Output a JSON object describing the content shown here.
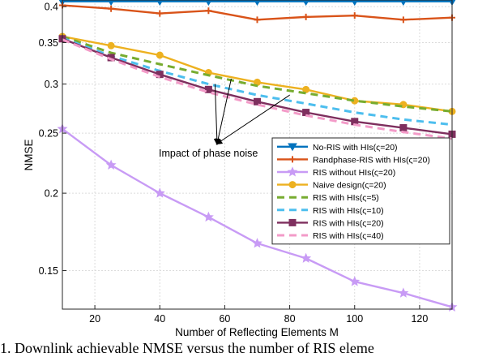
{
  "chart_data": {
    "type": "line",
    "xlabel": "Number of Reflecting Elements M",
    "ylabel": "NMSE",
    "xlim": [
      10,
      130
    ],
    "ylim": [
      0.13,
      0.41
    ],
    "yscale": "log",
    "grid": true,
    "legend_position": "center-right",
    "xticks": [
      {
        "value": 20,
        "label": "20"
      },
      {
        "value": 40,
        "label": "40"
      },
      {
        "value": 60,
        "label": "60"
      },
      {
        "value": 80,
        "label": "80"
      },
      {
        "value": 100,
        "label": "100"
      },
      {
        "value": 120,
        "label": "120"
      }
    ],
    "yticks": [
      {
        "value": 0.15,
        "label": "0.15"
      },
      {
        "value": 0.2,
        "label": "0.2"
      },
      {
        "value": 0.25,
        "label": "0.25"
      },
      {
        "value": 0.3,
        "label": "0.3"
      },
      {
        "value": 0.35,
        "label": "0.35"
      },
      {
        "value": 0.4,
        "label": "0.4"
      }
    ],
    "series": [
      {
        "name": "No-RIS with HIs(ς=20)",
        "color": "#0072BD",
        "dash": "solid",
        "marker": "triangle-down",
        "x": [
          10,
          25,
          40,
          55,
          70,
          85,
          100,
          115,
          130
        ],
        "y": [
          0.408,
          0.408,
          0.408,
          0.408,
          0.408,
          0.408,
          0.408,
          0.408,
          0.408
        ]
      },
      {
        "name": "Randphase-RIS with HIs(ς=20)",
        "color": "#D95319",
        "dash": "solid",
        "marker": "plus",
        "x": [
          10,
          25,
          40,
          55,
          70,
          85,
          100,
          115,
          130
        ],
        "y": [
          0.402,
          0.397,
          0.39,
          0.394,
          0.381,
          0.385,
          0.387,
          0.381,
          0.384
        ]
      },
      {
        "name": "RIS without HIs(ς=20)",
        "color": "#C89BF5",
        "dash": "solid",
        "marker": "star",
        "x": [
          10,
          25,
          40,
          55,
          70,
          85,
          100,
          115,
          130
        ],
        "y": [
          0.254,
          0.222,
          0.2,
          0.183,
          0.166,
          0.157,
          0.144,
          0.138,
          0.131
        ]
      },
      {
        "name": "Naive design(ς=20)",
        "color": "#EDB120",
        "dash": "solid",
        "marker": "circle",
        "x": [
          10,
          25,
          40,
          55,
          70,
          85,
          100,
          115,
          130
        ],
        "y": [
          0.358,
          0.346,
          0.334,
          0.313,
          0.302,
          0.294,
          0.282,
          0.278,
          0.271
        ]
      },
      {
        "name": "RIS with HIs(ς=5)",
        "color": "#77AC30",
        "dash": "dashed",
        "marker": "none",
        "x": [
          10,
          25,
          40,
          55,
          70,
          85,
          100,
          115,
          130
        ],
        "y": [
          0.358,
          0.337,
          0.323,
          0.31,
          0.298,
          0.29,
          0.282,
          0.276,
          0.271
        ]
      },
      {
        "name": "RIS with HIs(ς=10)",
        "color": "#4DBEEE",
        "dash": "dashed",
        "marker": "none",
        "x": [
          10,
          25,
          40,
          55,
          70,
          85,
          100,
          115,
          130
        ],
        "y": [
          0.356,
          0.333,
          0.315,
          0.3,
          0.288,
          0.279,
          0.27,
          0.263,
          0.258
        ]
      },
      {
        "name": "RIS with HIs(ς=20)",
        "color": "#7E2F5E",
        "dash": "solid",
        "marker": "square",
        "x": [
          10,
          25,
          40,
          55,
          70,
          85,
          100,
          115,
          130
        ],
        "y": [
          0.355,
          0.331,
          0.311,
          0.294,
          0.281,
          0.27,
          0.261,
          0.255,
          0.249
        ]
      },
      {
        "name": "RIS with HIs(ς=40)",
        "color": "#F39BC8",
        "dash": "dashed",
        "marker": "none",
        "x": [
          10,
          25,
          40,
          55,
          70,
          85,
          100,
          115,
          130
        ],
        "y": [
          0.354,
          0.329,
          0.308,
          0.291,
          0.278,
          0.267,
          0.258,
          0.251,
          0.245
        ]
      }
    ],
    "annotation": {
      "text": "Impact of phase noise",
      "arrow_points_to": [
        {
          "x": 57,
          "y": 0.3
        },
        {
          "x": 62,
          "y": 0.306
        },
        {
          "x": 80,
          "y": 0.288
        }
      ]
    }
  },
  "caption": "1.  Downlink achievable NMSE versus the number of RIS eleme"
}
